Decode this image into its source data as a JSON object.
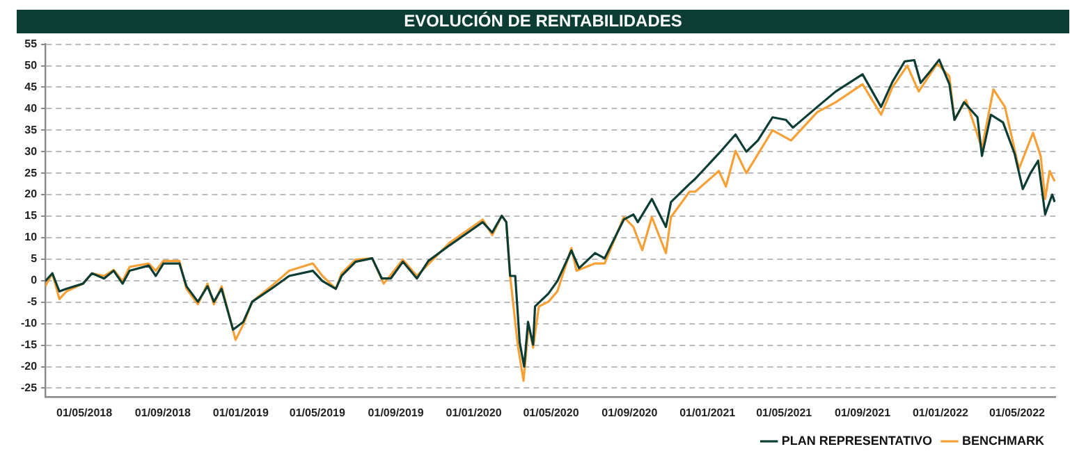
{
  "chart_data": {
    "type": "line",
    "title": "EVOLUCIÓN DE RENTABILIDADES",
    "xlim": [
      "2018-03-01",
      "2022-06-30"
    ],
    "xticks": [
      {
        "value": "2018-05-01",
        "label": "01/05/2018"
      },
      {
        "value": "2018-09-01",
        "label": "01/09/2018"
      },
      {
        "value": "2019-01-01",
        "label": "01/01/2019"
      },
      {
        "value": "2019-05-01",
        "label": "01/05/2019"
      },
      {
        "value": "2019-09-01",
        "label": "01/09/2019"
      },
      {
        "value": "2020-01-01",
        "label": "01/01/2020"
      },
      {
        "value": "2020-05-01",
        "label": "01/05/2020"
      },
      {
        "value": "2020-09-01",
        "label": "01/09/2020"
      },
      {
        "value": "2021-01-01",
        "label": "01/01/2021"
      },
      {
        "value": "2021-05-01",
        "label": "01/05/2021"
      },
      {
        "value": "2021-09-01",
        "label": "01/09/2021"
      },
      {
        "value": "2022-01-01",
        "label": "01/01/2022"
      },
      {
        "value": "2022-05-01",
        "label": "01/05/2022"
      }
    ],
    "ylim": [
      -27,
      55
    ],
    "yticks": [
      -25,
      -20,
      -15,
      -10,
      -5,
      0,
      5,
      10,
      15,
      20,
      25,
      30,
      35,
      40,
      45,
      50,
      55
    ],
    "grid": "y",
    "legend": "bottom right",
    "marker": "none",
    "line_style": "solid",
    "series": [
      {
        "name": "PLAN REPRESENTATIVO",
        "color": "#0b3d35",
        "x": [
          "2018-03-01",
          "2018-03-12",
          "2018-03-23",
          "2018-04-03",
          "2018-04-29",
          "2018-05-13",
          "2018-06-01",
          "2018-06-16",
          "2018-06-30",
          "2018-07-11",
          "2018-08-10",
          "2018-08-21",
          "2018-09-02",
          "2018-09-27",
          "2018-10-08",
          "2018-10-26",
          "2018-11-10",
          "2018-11-20",
          "2018-12-02",
          "2018-12-20",
          "2019-01-05",
          "2019-01-19",
          "2019-02-18",
          "2019-03-18",
          "2019-04-24",
          "2019-05-09",
          "2019-05-30",
          "2019-06-08",
          "2019-06-30",
          "2019-07-26",
          "2019-08-10",
          "2019-08-24",
          "2019-09-12",
          "2019-10-04",
          "2019-10-22",
          "2019-11-24",
          "2019-12-23",
          "2020-01-15",
          "2020-01-30",
          "2020-02-14",
          "2020-02-21",
          "2020-02-27",
          "2020-03-06",
          "2020-03-13",
          "2020-03-20",
          "2020-03-26",
          "2020-04-03",
          "2020-04-06",
          "2020-04-27",
          "2020-05-11",
          "2020-06-02",
          "2020-06-14",
          "2020-07-09",
          "2020-07-24",
          "2020-08-23",
          "2020-09-07",
          "2020-09-14",
          "2020-10-06",
          "2020-10-28",
          "2020-11-05",
          "2020-12-04",
          "2020-12-13",
          "2021-01-19",
          "2021-02-14",
          "2021-03-03",
          "2021-03-21",
          "2021-04-13",
          "2021-05-04",
          "2021-05-15",
          "2021-06-22",
          "2021-07-21",
          "2021-09-01",
          "2021-09-30",
          "2021-10-18",
          "2021-11-06",
          "2021-11-21",
          "2021-12-01",
          "2021-12-16",
          "2021-12-30",
          "2022-01-15",
          "2022-01-23",
          "2022-02-07",
          "2022-02-28",
          "2022-03-07",
          "2022-03-21",
          "2022-04-09",
          "2022-04-27",
          "2022-05-10",
          "2022-05-22",
          "2022-06-03",
          "2022-06-14",
          "2022-06-25",
          "2022-06-29"
        ],
        "values": [
          -0.1,
          1.7,
          -2.5,
          -1.9,
          -0.7,
          1.7,
          0.5,
          2.3,
          -0.7,
          2.3,
          3.5,
          1.1,
          4,
          4,
          -1.3,
          -4.9,
          -1.3,
          -4.9,
          -1.9,
          -11.4,
          -9.6,
          -4.9,
          -1.9,
          1.1,
          2.3,
          -0.1,
          -1.9,
          1.1,
          4.4,
          5.2,
          0.5,
          0.5,
          4.4,
          0.5,
          4.6,
          8.2,
          11.2,
          13.6,
          11.2,
          15.1,
          13.6,
          1.1,
          1.1,
          -14.4,
          -20,
          -9.6,
          -14.9,
          -6,
          -3,
          -0.1,
          7,
          2.9,
          6.4,
          5.2,
          14.2,
          15.4,
          13.6,
          19,
          12.5,
          18.3,
          22.5,
          23.7,
          29.6,
          34,
          30,
          32.6,
          38,
          37.4,
          35.6,
          40.4,
          44,
          48,
          40.4,
          46.3,
          51,
          51.3,
          46,
          48.7,
          51.4,
          45.7,
          37.4,
          41.5,
          38,
          29,
          38.6,
          36.8,
          29.6,
          21.3,
          25,
          27.9,
          15.4,
          20,
          18.3
        ]
      },
      {
        "name": "BENCHMARK",
        "color": "#f7a035",
        "x": [
          "2018-03-01",
          "2018-03-12",
          "2018-03-23",
          "2018-04-03",
          "2018-04-29",
          "2018-05-13",
          "2018-06-01",
          "2018-06-16",
          "2018-06-30",
          "2018-07-11",
          "2018-08-10",
          "2018-08-21",
          "2018-09-02",
          "2018-09-27",
          "2018-10-08",
          "2018-10-26",
          "2018-11-10",
          "2018-11-20",
          "2018-12-02",
          "2018-12-24",
          "2019-01-05",
          "2019-01-19",
          "2019-02-18",
          "2019-03-18",
          "2019-04-24",
          "2019-05-09",
          "2019-05-30",
          "2019-06-08",
          "2019-06-30",
          "2019-07-26",
          "2019-08-13",
          "2019-09-12",
          "2019-10-04",
          "2019-11-24",
          "2019-12-23",
          "2020-01-15",
          "2020-01-30",
          "2020-02-14",
          "2020-02-21",
          "2020-02-27",
          "2020-03-10",
          "2020-03-19",
          "2020-03-27",
          "2020-04-03",
          "2020-04-12",
          "2020-04-27",
          "2020-05-11",
          "2020-06-02",
          "2020-06-10",
          "2020-07-09",
          "2020-07-24",
          "2020-08-23",
          "2020-09-07",
          "2020-09-21",
          "2020-10-06",
          "2020-10-28",
          "2020-11-05",
          "2020-12-04",
          "2020-12-13",
          "2021-01-19",
          "2021-01-30",
          "2021-02-14",
          "2021-03-03",
          "2021-04-13",
          "2021-05-12",
          "2021-06-22",
          "2021-07-21",
          "2021-09-01",
          "2021-09-30",
          "2021-10-18",
          "2021-11-10",
          "2021-11-28",
          "2021-12-27",
          "2022-01-15",
          "2022-01-23",
          "2022-02-10",
          "2022-03-07",
          "2022-03-25",
          "2022-04-12",
          "2022-05-04",
          "2022-05-26",
          "2022-06-07",
          "2022-06-14",
          "2022-06-21",
          "2022-06-29"
        ],
        "values": [
          -1.3,
          1.7,
          -4.3,
          -2.5,
          -0.7,
          1.7,
          1.1,
          2.5,
          -0.1,
          3.2,
          4,
          2.3,
          4.6,
          4.6,
          -1.9,
          -5.5,
          -0.7,
          -5.5,
          -1.3,
          -13.8,
          -10.2,
          -4.9,
          -1.3,
          2.3,
          4,
          1.1,
          -1.9,
          1.7,
          4.9,
          5.2,
          -0.7,
          4.9,
          1.1,
          8.8,
          11.8,
          14.2,
          10.6,
          15.1,
          13.6,
          1.1,
          -15,
          -23.3,
          -10.2,
          -15.6,
          -6,
          -4.9,
          -2.5,
          7.6,
          2.3,
          4,
          4,
          14.8,
          12.5,
          7.1,
          14.8,
          6.4,
          14.8,
          20.7,
          20.7,
          25.5,
          21.9,
          30.2,
          25,
          35,
          32.6,
          39.2,
          41.5,
          45.7,
          38.6,
          45,
          50,
          44,
          50.5,
          47.5,
          37.4,
          42,
          30.8,
          44.5,
          40.4,
          26,
          34.4,
          29,
          19,
          25.5,
          23.1
        ]
      }
    ]
  }
}
